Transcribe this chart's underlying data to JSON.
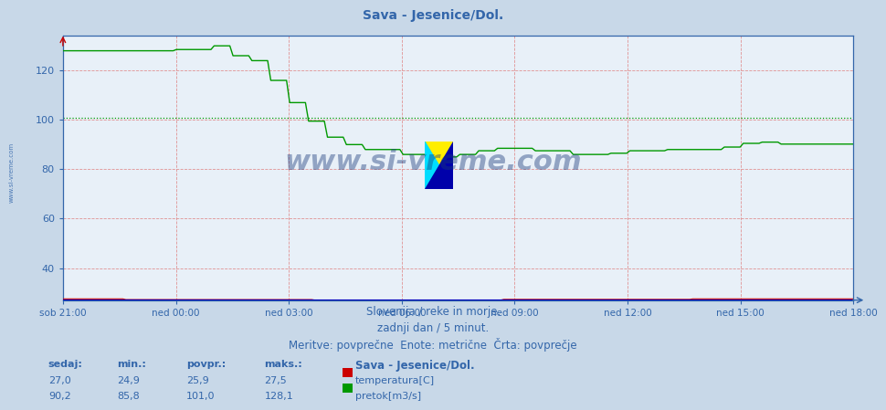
{
  "title": "Sava - Jesenice/Dol.",
  "fig_bg_color": "#c8d8e8",
  "plot_bg_color": "#e8f0f8",
  "grid_h_color": "#e08888",
  "grid_v_color": "#e08888",
  "axis_color": "#3366aa",
  "ytick_color": "#3366aa",
  "yticks": [
    40,
    60,
    80,
    100,
    120
  ],
  "ymin": 27,
  "ymax": 134,
  "xtick_labels": [
    "sob 21:00",
    "ned 00:00",
    "ned 03:00",
    "ned 06:00",
    "ned 09:00",
    "ned 12:00",
    "ned 15:00",
    "ned 18:00"
  ],
  "n_points": 252,
  "temp_color": "#cc0000",
  "flow_color": "#009900",
  "height_color": "#0000bb",
  "avg_temp": 25.9,
  "avg_flow": 101.0,
  "temp_sedaj": "27,0",
  "temp_min": "24,9",
  "temp_povpr": "25,9",
  "temp_maks": "27,5",
  "flow_sedaj": "90,2",
  "flow_min": "85,8",
  "flow_povpr": "101,0",
  "flow_maks": "128,1",
  "subtitle1": "Slovenija / reke in morje.",
  "subtitle2": "zadnji dan / 5 minut.",
  "subtitle3": "Meritve: povprečne  Enote: metrične  Črta: povprečje",
  "legend_title": "Sava - Jesenice/Dol.",
  "label_temp": "temperatura[C]",
  "label_flow": "pretok[m3/s]",
  "headers": [
    "sedaj:",
    "min.:",
    "povpr.:",
    "maks.:"
  ],
  "watermark": "www.si-vreme.com",
  "left_watermark": "www.si-vreme.com"
}
